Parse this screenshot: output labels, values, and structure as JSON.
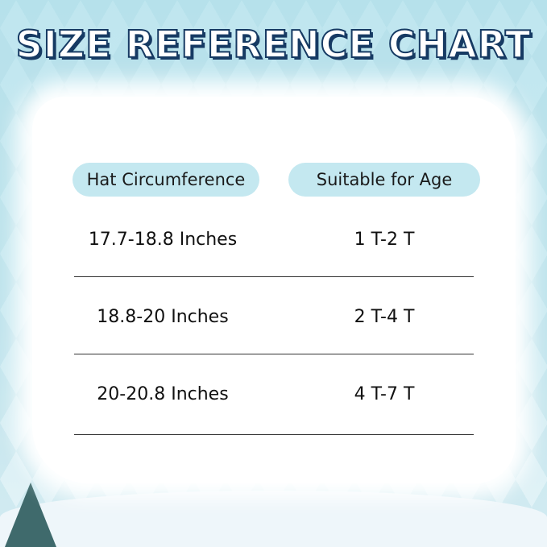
{
  "title": "SIZE REFERENCE CHART",
  "headers": [
    "Hat Circumference",
    "Suitable for Age"
  ],
  "rows": [
    {
      "size": "17.7-18.8 Inches",
      "age": "1 T-2 T"
    },
    {
      "size": "18.8-20 Inches",
      "age": "2 T-4 T"
    },
    {
      "size": "20-20.8 Inches",
      "age": "4 T-7 T"
    }
  ],
  "colors": {
    "title_outline": "#163a63",
    "header_pill": "#c4e8f0",
    "background": "#bfe6ef"
  }
}
